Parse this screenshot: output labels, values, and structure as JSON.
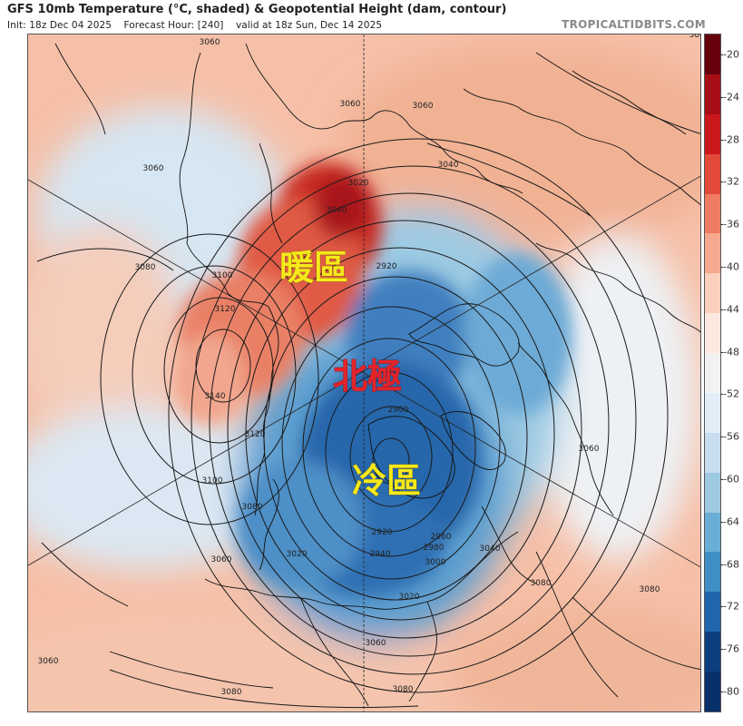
{
  "header": {
    "title": "GFS 10mb Temperature (°C, shaded) & Geopotential Height (dam, contour)",
    "init": "Init: 18z Dec 04 2025",
    "forecast_hour": "Forecast Hour: [240]",
    "valid": "valid at 18z Sun, Dec 14 2025",
    "brand": "TROPICALTIDBITS.COM"
  },
  "annotations": {
    "warm": "暖區",
    "pole": "北極",
    "cold": "冷區"
  },
  "colors": {
    "annotation_warm": "#f5e91c",
    "annotation_pole": "#e3242b",
    "annotation_cold": "#f5e91c",
    "contour": "#1a1a1a",
    "coast": "#111111"
  },
  "colorbar": {
    "ticks": [
      "-20",
      "-24",
      "-28",
      "-32",
      "-36",
      "-40",
      "-44",
      "-48",
      "-52",
      "-56",
      "-60",
      "-64",
      "-68",
      "-72",
      "-76",
      "-80"
    ],
    "colors": [
      "#67000d",
      "#a50f15",
      "#cb181d",
      "#e24a3a",
      "#ef7b62",
      "#f6a98e",
      "#fbd0bd",
      "#fde9df",
      "#f2f2f2",
      "#e2eef7",
      "#c7dcee",
      "#9ecae1",
      "#6aaed6",
      "#3f8fc6",
      "#2166ac",
      "#0d3f7f",
      "#08306b"
    ]
  },
  "contour_labels": [
    "3060",
    "3060",
    "3060",
    "3060",
    "3040",
    "3080",
    "3020",
    "3040",
    "3080",
    "3100",
    "2920",
    "3120",
    "3140",
    "3120",
    "2900",
    "3060",
    "3100",
    "3080",
    "3060",
    "3020",
    "2920",
    "2940",
    "2960",
    "2980",
    "3000",
    "3040",
    "3020",
    "3080",
    "3080",
    "3060",
    "3080",
    "3060",
    "3080"
  ]
}
